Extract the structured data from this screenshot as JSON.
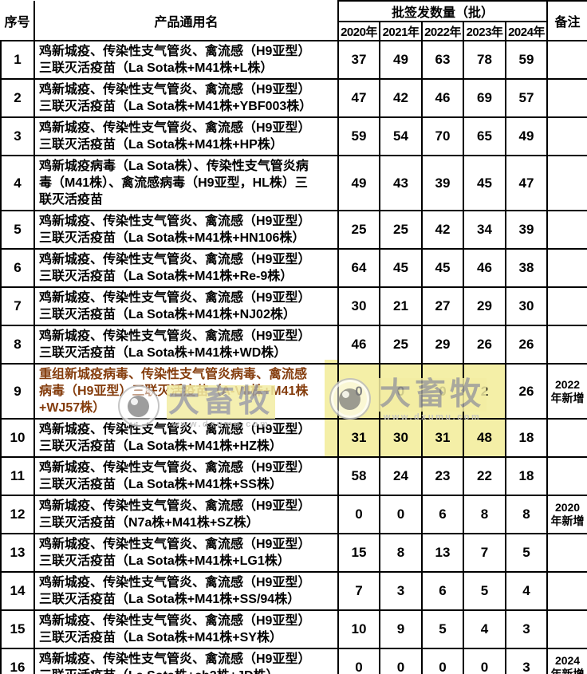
{
  "table": {
    "header": {
      "seq": "序号",
      "product": "产品通用名",
      "group": "批签发数量（批）",
      "years": [
        "2020年",
        "2021年",
        "2022年",
        "2023年",
        "2024年"
      ],
      "remark": "备注"
    },
    "rows": [
      {
        "no": "1",
        "name": "鸡新城疫、传染性支气管炎、禽流感（H9亚型）\n三联灭活疫苗（La Sota株+M41株+L株）",
        "values": [
          "37",
          "49",
          "63",
          "78",
          "59"
        ],
        "remark": "",
        "red": false,
        "highlight": []
      },
      {
        "no": "2",
        "name": "鸡新城疫、传染性支气管炎、禽流感（H9亚型）\n三联灭活疫苗（La Sota株+M41株+YBF003株）",
        "values": [
          "47",
          "42",
          "46",
          "69",
          "57"
        ],
        "remark": "",
        "red": false,
        "highlight": []
      },
      {
        "no": "3",
        "name": "鸡新城疫、传染性支气管炎、禽流感（H9亚型）\n三联灭活疫苗（La Sota株+M41株+HP株）",
        "values": [
          "59",
          "54",
          "70",
          "65",
          "49"
        ],
        "remark": "",
        "red": false,
        "highlight": []
      },
      {
        "no": "4",
        "name": "鸡新城疫病毒（La Sota株）、传染性支气管炎病\n毒（M41株）、禽流感病毒（H9亚型，HL株）三\n联灭活疫苗",
        "values": [
          "49",
          "43",
          "39",
          "45",
          "47"
        ],
        "remark": "",
        "red": false,
        "highlight": []
      },
      {
        "no": "5",
        "name": "鸡新城疫、传染性支气管炎、禽流感（H9亚型）\n三联灭活疫苗（La Sota株+M41株+HN106株）",
        "values": [
          "25",
          "25",
          "42",
          "34",
          "39"
        ],
        "remark": "",
        "red": false,
        "highlight": []
      },
      {
        "no": "6",
        "name": "鸡新城疫、传染性支气管炎、禽流感（H9亚型）\n三联灭活疫苗（La Sota株+M41株+Re-9株）",
        "values": [
          "64",
          "45",
          "45",
          "46",
          "38"
        ],
        "remark": "",
        "red": false,
        "highlight": []
      },
      {
        "no": "7",
        "name": "鸡新城疫、传染性支气管炎、禽流感（H9亚型）\n三联灭活疫苗（La Sota株+M41株+NJ02株）",
        "values": [
          "30",
          "21",
          "27",
          "29",
          "30"
        ],
        "remark": "",
        "red": false,
        "highlight": []
      },
      {
        "no": "8",
        "name": "鸡新城疫、传染性支气管炎、禽流感（H9亚型）\n三联灭活疫苗（La Sota株+M41株+WD株）",
        "values": [
          "46",
          "25",
          "29",
          "26",
          "26"
        ],
        "remark": "",
        "red": false,
        "highlight": []
      },
      {
        "no": "9",
        "name": "重组新城疫病毒、传染性支气管炎病毒、禽流感\n病毒（H9亚型）三联灭活疫苗（A-VII株+M41株\n+WJ57株）",
        "values": [
          "0",
          "0",
          "0",
          "2",
          "26"
        ],
        "remark": "2022年新增",
        "red": true,
        "highlight": [
          0,
          1,
          2,
          3
        ]
      },
      {
        "no": "10",
        "name": "鸡新城疫、传染性支气管炎、禽流感（H9亚型）\n三联灭活疫苗（La Sota株+M41株+HZ株）",
        "values": [
          "31",
          "30",
          "31",
          "48",
          "18"
        ],
        "remark": "",
        "red": false,
        "highlight": [
          0,
          1,
          2,
          3
        ]
      },
      {
        "no": "11",
        "name": "鸡新城疫、传染性支气管炎、禽流感（H9亚型）\n三联灭活疫苗（La Sota株+M41株+SS株）",
        "values": [
          "58",
          "24",
          "23",
          "22",
          "18"
        ],
        "remark": "",
        "red": false,
        "highlight": []
      },
      {
        "no": "12",
        "name": "鸡新城疫、传染性支气管炎、禽流感（H9亚型）\n三联灭活疫苗（N7a株+M41株+SZ株）",
        "values": [
          "0",
          "0",
          "6",
          "8",
          "8"
        ],
        "remark": "2020年新增",
        "red": false,
        "highlight": []
      },
      {
        "no": "13",
        "name": "鸡新城疫、传染性支气管炎、禽流感（H9亚型）\n三联灭活疫苗（La Sota株+M41株+LG1株）",
        "values": [
          "15",
          "8",
          "13",
          "7",
          "5"
        ],
        "remark": "",
        "red": false,
        "highlight": []
      },
      {
        "no": "14",
        "name": "鸡新城疫、传染性支气管炎、禽流感（H9亚型）\n三联灭活疫苗（La Sota株+M41株+SS/94株）",
        "values": [
          "7",
          "3",
          "6",
          "5",
          "4"
        ],
        "remark": "",
        "red": false,
        "highlight": []
      },
      {
        "no": "15",
        "name": "鸡新城疫、传染性支气管炎、禽流感（H9亚型）\n三联灭活疫苗（La Sota株+M41株+SY株）",
        "values": [
          "10",
          "9",
          "5",
          "4",
          "3"
        ],
        "remark": "",
        "red": false,
        "highlight": []
      },
      {
        "no": "16",
        "name": "鸡新城疫、传染性支气管炎、禽流感（H9亚型）\n三联灭活疫苗（La Sota株+cb2株+JD株）",
        "values": [
          "0",
          "0",
          "0",
          "0",
          "3"
        ],
        "remark": "2024年新增",
        "red": false,
        "highlight": []
      }
    ]
  },
  "watermark": {
    "brand": "大畜牧",
    "url": "www.dxumu.com"
  },
  "colors": {
    "highlight": "#f4efa7",
    "new_product_text": "#843c0c",
    "border": "#000000",
    "watermark_gray": "#9c9c9c"
  }
}
